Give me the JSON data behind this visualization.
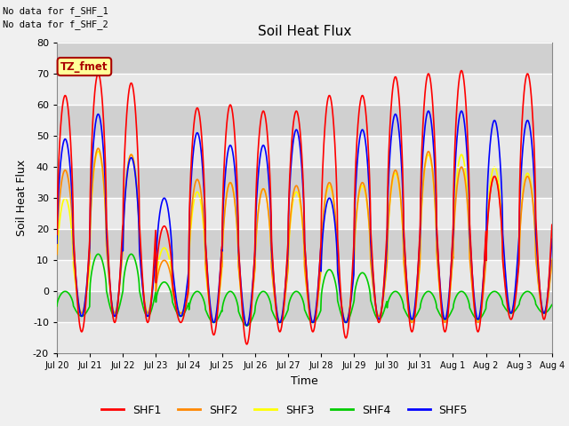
{
  "title": "Soil Heat Flux",
  "ylabel": "Soil Heat Flux",
  "xlabel": "Time",
  "ylim": [
    -20,
    80
  ],
  "series_colors": {
    "SHF1": "#ff0000",
    "SHF2": "#ff8800",
    "SHF3": "#ffff00",
    "SHF4": "#00cc00",
    "SHF5": "#0000ff"
  },
  "top_left_text_1": "No data for f_SHF_1",
  "top_left_text_2": "No data for f_SHF_2",
  "tz_label": "TZ_fmet",
  "tz_box_color": "#ffff99",
  "tz_border_color": "#aa0000",
  "tz_text_color": "#aa0000",
  "bg_light": "#e8e8e8",
  "bg_dark": "#d0d0d0",
  "grid_color": "#c8c8c8",
  "x_labels": [
    "Jul 20",
    "Jul 21",
    "Jul 22",
    "Jul 23",
    "Jul 24",
    "Jul 25",
    "Jul 26",
    "Jul 27",
    "Jul 28",
    "Jul 29",
    "Jul 30",
    "Jul 31",
    "Aug 1",
    "Aug 2",
    "Aug 3",
    "Aug 4"
  ],
  "peaks_shf1": [
    63,
    70,
    67,
    21,
    59,
    60,
    58,
    58,
    63,
    63,
    69,
    70,
    71,
    37,
    70
  ],
  "troughs_shf1": [
    -13,
    -10,
    -10,
    -10,
    -14,
    -17,
    -13,
    -13,
    -15,
    -10,
    -13,
    -13,
    -13,
    -9,
    -9
  ],
  "peaks_shf2": [
    39,
    46,
    44,
    10,
    36,
    35,
    33,
    34,
    35,
    35,
    39,
    45,
    40,
    37,
    37
  ],
  "troughs_shf2": [
    -7,
    -7,
    -7,
    -7,
    -10,
    -11,
    -10,
    -10,
    -10,
    -8,
    -10,
    -10,
    -10,
    -7,
    -7
  ],
  "peaks_shf3": [
    30,
    45,
    44,
    14,
    32,
    35,
    33,
    32,
    34,
    34,
    38,
    44,
    44,
    40,
    38
  ],
  "troughs_shf3": [
    -7,
    -7,
    -7,
    -7,
    -10,
    -11,
    -10,
    -10,
    -10,
    -8,
    -10,
    -10,
    -10,
    -7,
    -7
  ],
  "peaks_shf4": [
    0,
    12,
    12,
    3,
    0,
    0,
    0,
    0,
    7,
    6,
    0,
    0,
    0,
    0,
    0
  ],
  "troughs_shf4": [
    -8,
    -8,
    -8,
    -8,
    -10,
    -11,
    -10,
    -10,
    -10,
    -9,
    -9,
    -9,
    -9,
    -7,
    -7
  ],
  "peaks_shf5": [
    49,
    57,
    43,
    30,
    51,
    47,
    47,
    52,
    30,
    52,
    57,
    58,
    58,
    55,
    55
  ],
  "troughs_shf5": [
    -8,
    -8,
    -8,
    -8,
    -10,
    -11,
    -10,
    -10,
    -10,
    -9,
    -9,
    -9,
    -9,
    -7,
    -7
  ]
}
